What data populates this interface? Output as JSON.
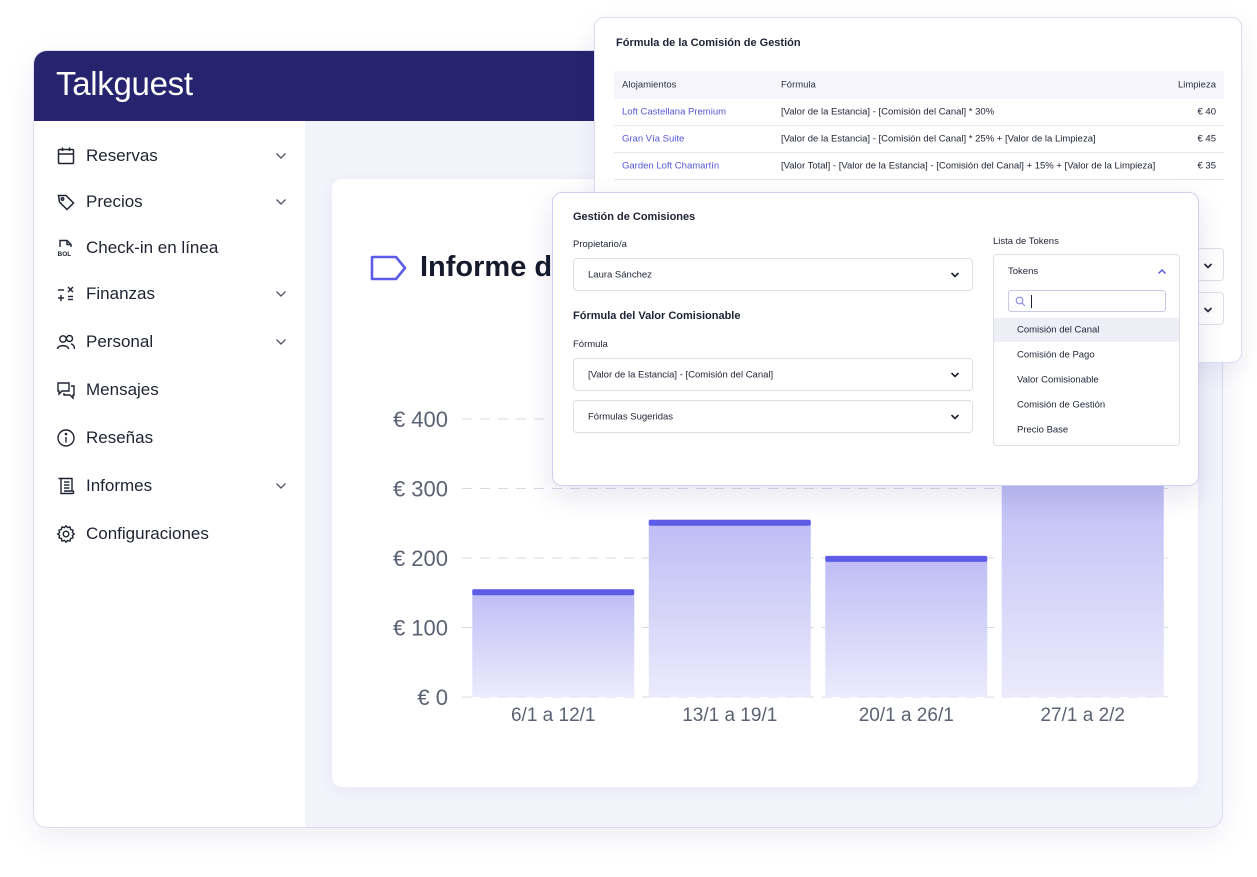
{
  "app": {
    "brand": "Talkguest"
  },
  "sidebar": {
    "items": [
      {
        "label": "Reservas",
        "icon": "calendar-icon",
        "has_chevron": true
      },
      {
        "label": "Precios",
        "icon": "tag-icon",
        "has_chevron": true
      },
      {
        "label": "Check-in en línea",
        "icon": "bol-document-icon",
        "has_chevron": false
      },
      {
        "label": "Finanzas",
        "icon": "calculator-icon",
        "has_chevron": true
      },
      {
        "label": "Personal",
        "icon": "users-icon",
        "has_chevron": true
      },
      {
        "label": "Mensajes",
        "icon": "chat-icon",
        "has_chevron": false
      },
      {
        "label": "Reseñas",
        "icon": "info-icon",
        "has_chevron": false
      },
      {
        "label": "Informes",
        "icon": "scroll-icon",
        "has_chevron": true
      },
      {
        "label": "Configuraciones",
        "icon": "gear-icon",
        "has_chevron": false
      }
    ]
  },
  "report": {
    "title_visible": "Informe de"
  },
  "chart_data": {
    "type": "bar",
    "categories": [
      "6/1 a 12/1",
      "13/1 a 19/1",
      "20/1 a 26/1",
      "27/1 a 2/2"
    ],
    "values": [
      155,
      255,
      203,
      320
    ],
    "ylim": [
      0,
      400
    ],
    "yticks": [
      0,
      100,
      200,
      300,
      400
    ],
    "ytick_labels": [
      "€ 0",
      "€ 100",
      "€ 200",
      "€ 300",
      "€ 400"
    ],
    "grid": true,
    "colors": {
      "bar_top": "#5e5ce6",
      "bar_fill": "#c9c8f7",
      "grid": "#d9d9e3"
    }
  },
  "formula_popup": {
    "title": "Fórmula de la Comisión de Gestión",
    "columns": [
      "Alojamientos",
      "Fórmula",
      "Limpieza"
    ],
    "rows": [
      {
        "alojamiento": "Loft Castellana Premium",
        "formula": "[Valor de la Estancia] - [Comisión del Canal] * 30%",
        "limpieza": "€ 40"
      },
      {
        "alojamiento": "Gran Vía Suite",
        "formula": "[Valor de la Estancia] - [Comisión del Canal] * 25% + [Valor de la Limpieza]",
        "limpieza": "€ 45"
      },
      {
        "alojamiento": "Garden Loft Chamartín",
        "formula": "[Valor Total] - [Valor de la Estancia] - [Comisión del Canal] + 15% + [Valor de la Limpieza]",
        "limpieza": "€ 35"
      }
    ]
  },
  "gestion_popup": {
    "title": "Gestión de Comisiones",
    "owner_label": "Propietario/a",
    "owner_value": "Laura Sánchez",
    "section_title": "Fórmula del Valor Comisionable",
    "formula_label": "Fórmula",
    "formula_value": "[Valor de la Estancia] - [Comisión del Canal]",
    "suggested_value": "Fórmulas Sugeridas",
    "tokens_label": "Lista de Tokens",
    "tokens_header": "Tokens",
    "tokens": [
      "Comisión del Canal",
      "Comisión de Pago",
      "Valor Comisionable",
      "Comisión de Gestión",
      "Precio Base"
    ],
    "active_token": 0
  },
  "colors": {
    "brand_bar": "#26246f",
    "accent": "#5e5ce6",
    "link": "#5557d8"
  }
}
